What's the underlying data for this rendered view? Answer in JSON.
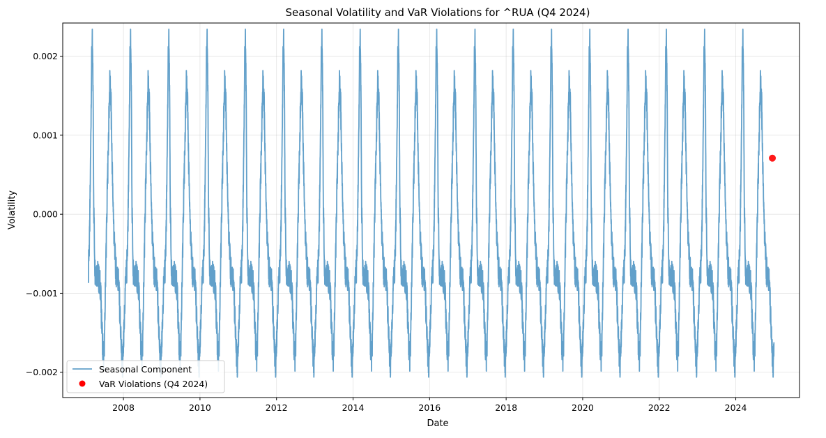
{
  "chart_data": {
    "type": "line",
    "title": "Seasonal Volatility and VaR Violations for ^RUA (Q4 2024)",
    "xlabel": "Date",
    "ylabel": "Volatility",
    "xlim": [
      "2006-06-01",
      "2025-09-01"
    ],
    "ylim": [
      -0.00232,
      0.00242
    ],
    "x_ticks": [
      "2008",
      "2010",
      "2012",
      "2014",
      "2016",
      "2018",
      "2020",
      "2022",
      "2024"
    ],
    "y_ticks": [
      -0.002,
      -0.001,
      0.0,
      0.001,
      0.002
    ],
    "y_tick_labels": [
      "−0.002",
      "−0.001",
      "0.000",
      "0.001",
      "0.002"
    ],
    "grid": true,
    "legend_position": "bottom-left",
    "series": [
      {
        "name": "Seasonal Component",
        "kind": "line",
        "color": "#1f77b4",
        "alpha": 0.7,
        "x_range": [
          "2007-02-01",
          "2024-12-31"
        ],
        "period": "1 year",
        "profile": [
          {
            "frac": 0.0,
            "y": -0.00068
          },
          {
            "frac": 0.03,
            "y": -0.0003
          },
          {
            "frac": 0.06,
            "y": 0.0008
          },
          {
            "frac": 0.08,
            "y": 0.00185
          },
          {
            "frac": 0.1,
            "y": 0.0022
          },
          {
            "frac": 0.12,
            "y": 0.0016
          },
          {
            "frac": 0.14,
            "y": 0.0001
          },
          {
            "frac": 0.17,
            "y": -0.0007
          },
          {
            "frac": 0.24,
            "y": -0.00075
          },
          {
            "frac": 0.31,
            "y": -0.0009
          },
          {
            "frac": 0.36,
            "y": -0.0015
          },
          {
            "frac": 0.39,
            "y": -0.0019
          },
          {
            "frac": 0.42,
            "y": -0.0016
          },
          {
            "frac": 0.46,
            "y": -0.0005
          },
          {
            "frac": 0.49,
            "y": 0.0002
          },
          {
            "frac": 0.53,
            "y": 0.0011
          },
          {
            "frac": 0.56,
            "y": 0.0017
          },
          {
            "frac": 0.59,
            "y": 0.0014
          },
          {
            "frac": 0.63,
            "y": 0.0004
          },
          {
            "frac": 0.67,
            "y": -0.0003
          },
          {
            "frac": 0.71,
            "y": -0.0007
          },
          {
            "frac": 0.79,
            "y": -0.00085
          },
          {
            "frac": 0.85,
            "y": -0.0016
          },
          {
            "frac": 0.89,
            "y": -0.002
          },
          {
            "frac": 0.93,
            "y": -0.0015
          },
          {
            "frac": 0.97,
            "y": -0.0008
          },
          {
            "frac": 1.0,
            "y": -0.00068
          }
        ]
      },
      {
        "name": "VaR Violations (Q4 2024)",
        "kind": "scatter",
        "color": "#ff0000",
        "points": [
          {
            "x": "2024-12-16",
            "y": 0.00071
          }
        ]
      }
    ]
  }
}
